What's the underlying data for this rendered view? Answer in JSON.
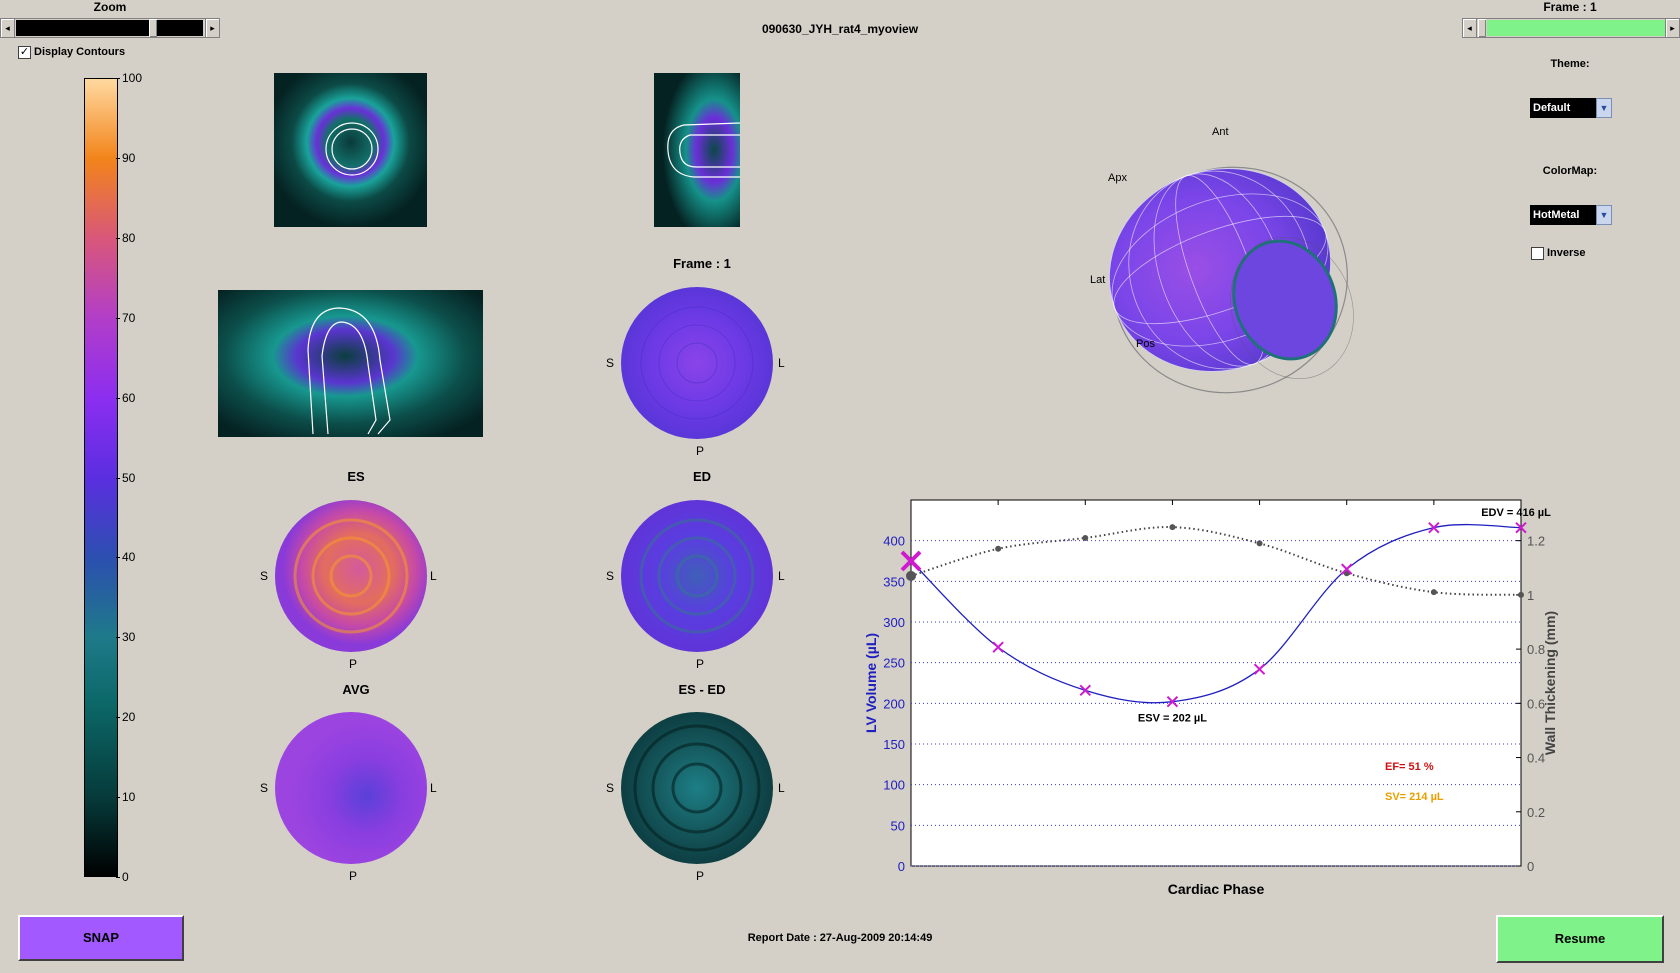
{
  "window_title": "090630_JYH_rat4_myoview",
  "zoom": {
    "label": "Zoom"
  },
  "frame_control": {
    "label": "Frame : 1"
  },
  "display_contours": {
    "label": "Display Contours",
    "checked": true
  },
  "theme": {
    "label": "Theme:",
    "value": "Default"
  },
  "colormap": {
    "label": "ColorMap:",
    "value": "HotMetal"
  },
  "inverse": {
    "label": "Inverse",
    "checked": false
  },
  "colorbar": {
    "ticks": [
      "100",
      "90",
      "80",
      "70",
      "60",
      "50",
      "40",
      "30",
      "20",
      "10",
      "0"
    ]
  },
  "polar_maps": {
    "frame": {
      "title": "Frame : 1"
    },
    "es": {
      "title": "ES"
    },
    "ed": {
      "title": "ED"
    },
    "avg": {
      "title": "AVG"
    },
    "es_ed": {
      "title": "ES - ED"
    },
    "dir_s": "S",
    "dir_l": "L",
    "dir_p": "P"
  },
  "model3d": {
    "ant": "Ant",
    "apex": "Apx",
    "lat": "Lat",
    "pos": "Pos"
  },
  "chart_data": {
    "type": "line",
    "xlabel": "Cardiac Phase",
    "ylabel": "LV Volume (µL)",
    "y2label": "Wall Thickening (mm)",
    "ylim": [
      0,
      450
    ],
    "y2lim": [
      0,
      1.35
    ],
    "yticks": [
      "0",
      "50",
      "100",
      "150",
      "200",
      "250",
      "300",
      "350",
      "400"
    ],
    "y2ticks": [
      "0",
      "0.2",
      "0.4",
      "0.6",
      "0.8",
      "1",
      "1.2"
    ],
    "x": [
      1,
      2,
      3,
      4,
      5,
      6,
      7,
      8
    ],
    "series": [
      {
        "name": "LV Volume",
        "axis": "left",
        "values": [
          375,
          269,
          216,
          202,
          242,
          365,
          416,
          416
        ],
        "color": "#1f1fbf",
        "marker": "x",
        "marker_color": "#d01ad0"
      },
      {
        "name": "Wall Thickening",
        "axis": "right",
        "values": [
          1.07,
          1.17,
          1.21,
          1.25,
          1.19,
          1.08,
          1.01,
          1.0
        ],
        "color": "#444444",
        "marker": "dot"
      }
    ],
    "annotations": {
      "edv": "EDV = 416 µL",
      "esv": "ESV = 202 µL",
      "ef": "EF= 51 %",
      "sv": "SV= 214 µL"
    },
    "colors": {
      "ef": "#d01010",
      "sv": "#e8a000",
      "volume_axis": "#2020c0"
    }
  },
  "report_date": "Report Date : 27-Aug-2009 20:14:49",
  "buttons": {
    "snap": "SNAP",
    "resume": "Resume"
  },
  "accent_colors": {
    "snap_bg": "#a259ff",
    "resume_bg": "#7ff28a",
    "frame_slider": "#7ff28a"
  }
}
